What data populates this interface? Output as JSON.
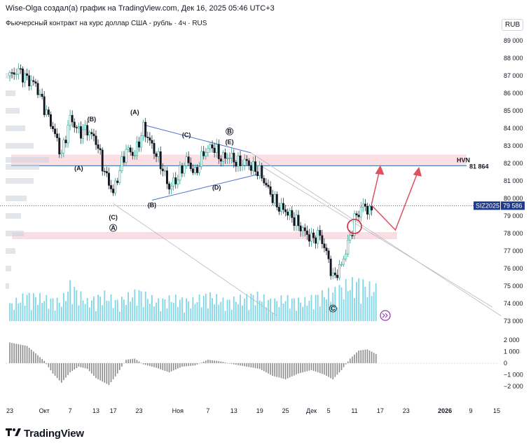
{
  "header": {
    "author_line": "Wise-Olga создал(а) график на TradingView.com, Дек 16, 2025 05:46 UTC+3",
    "instrument": "Фьючерсный контракт на курс доллар США - рубль · 4ч · RUS",
    "currency": "RUB",
    "brand": "TradingView"
  },
  "chart_data": {
    "type": "candlestick",
    "y_axis": {
      "ticks": [
        "89 000",
        "88 000",
        "87 000",
        "86 000",
        "85 000",
        "84 000",
        "83 000",
        "82 000",
        "81 000",
        "80 000",
        "79 000",
        "78 000",
        "77 000",
        "76 000",
        "75 000",
        "74 000",
        "73 000"
      ],
      "range": [
        73000,
        89000
      ]
    },
    "x_axis": {
      "ticks": [
        "23",
        "Окт",
        "7",
        "13",
        "17",
        "23",
        "Ноя",
        "7",
        "13",
        "19",
        "25",
        "Дек",
        "5",
        "11",
        "17",
        "23",
        "2026",
        "9",
        "15"
      ],
      "ticks_day_index": [
        0,
        8,
        14,
        20,
        24,
        30,
        39,
        46,
        52,
        58,
        64,
        70,
        74,
        80,
        86,
        92,
        101,
        107,
        113
      ]
    },
    "price_series": [
      {
        "d": 0,
        "v": 87000
      },
      {
        "d": 2,
        "v": 87300
      },
      {
        "d": 4,
        "v": 86800
      },
      {
        "d": 6,
        "v": 86500
      },
      {
        "d": 8,
        "v": 85200
      },
      {
        "d": 10,
        "v": 84000
      },
      {
        "d": 12,
        "v": 82500
      },
      {
        "d": 14,
        "v": 84600
      },
      {
        "d": 16,
        "v": 83800
      },
      {
        "d": 18,
        "v": 83900
      },
      {
        "d": 20,
        "v": 83300
      },
      {
        "d": 22,
        "v": 81500
      },
      {
        "d": 24,
        "v": 80300
      },
      {
        "d": 25,
        "v": 81200
      },
      {
        "d": 27,
        "v": 82800
      },
      {
        "d": 29,
        "v": 82500
      },
      {
        "d": 31,
        "v": 84000
      },
      {
        "d": 33,
        "v": 83000
      },
      {
        "d": 35,
        "v": 82000
      },
      {
        "d": 37,
        "v": 80600
      },
      {
        "d": 39,
        "v": 81200
      },
      {
        "d": 41,
        "v": 82200
      },
      {
        "d": 43,
        "v": 81400
      },
      {
        "d": 45,
        "v": 82600
      },
      {
        "d": 47,
        "v": 83000
      },
      {
        "d": 49,
        "v": 82300
      },
      {
        "d": 51,
        "v": 82400
      },
      {
        "d": 53,
        "v": 82000
      },
      {
        "d": 55,
        "v": 82100
      },
      {
        "d": 56,
        "v": 81800
      },
      {
        "d": 58,
        "v": 81500
      },
      {
        "d": 60,
        "v": 80500
      },
      {
        "d": 62,
        "v": 79600
      },
      {
        "d": 64,
        "v": 79300
      },
      {
        "d": 66,
        "v": 78800
      },
      {
        "d": 68,
        "v": 78200
      },
      {
        "d": 70,
        "v": 77700
      },
      {
        "d": 72,
        "v": 77900
      },
      {
        "d": 74,
        "v": 76500
      },
      {
        "d": 75,
        "v": 75400
      },
      {
        "d": 77,
        "v": 76200
      },
      {
        "d": 79,
        "v": 77800
      },
      {
        "d": 80,
        "v": 78800
      },
      {
        "d": 82,
        "v": 79600
      },
      {
        "d": 84,
        "v": 79200
      }
    ],
    "volume": [
      {
        "d": 0,
        "v": 0.25
      },
      {
        "d": 4,
        "v": 0.4
      },
      {
        "d": 8,
        "v": 0.35
      },
      {
        "d": 12,
        "v": 0.3
      },
      {
        "d": 14,
        "v": 0.55
      },
      {
        "d": 18,
        "v": 0.3
      },
      {
        "d": 22,
        "v": 0.4
      },
      {
        "d": 25,
        "v": 0.3
      },
      {
        "d": 30,
        "v": 0.45
      },
      {
        "d": 34,
        "v": 0.3
      },
      {
        "d": 38,
        "v": 0.35
      },
      {
        "d": 42,
        "v": 0.3
      },
      {
        "d": 46,
        "v": 0.4
      },
      {
        "d": 50,
        "v": 0.3
      },
      {
        "d": 54,
        "v": 0.35
      },
      {
        "d": 57,
        "v": 0.4
      },
      {
        "d": 61,
        "v": 0.3
      },
      {
        "d": 64,
        "v": 0.35
      },
      {
        "d": 68,
        "v": 0.3
      },
      {
        "d": 72,
        "v": 0.4
      },
      {
        "d": 75,
        "v": 0.45
      },
      {
        "d": 78,
        "v": 0.55
      },
      {
        "d": 81,
        "v": 0.6
      },
      {
        "d": 84,
        "v": 0.5
      }
    ],
    "oscillator": {
      "ticks": [
        "2 000",
        "1 000",
        "0",
        "−1 000",
        "−2 000"
      ],
      "range": [
        -2500,
        2500
      ],
      "values": [
        {
          "d": 0,
          "v": 1800
        },
        {
          "d": 4,
          "v": 1500
        },
        {
          "d": 8,
          "v": 200
        },
        {
          "d": 10,
          "v": -900
        },
        {
          "d": 12,
          "v": -1700
        },
        {
          "d": 14,
          "v": -800
        },
        {
          "d": 16,
          "v": -300
        },
        {
          "d": 18,
          "v": -500
        },
        {
          "d": 20,
          "v": -1300
        },
        {
          "d": 23,
          "v": -1900
        },
        {
          "d": 25,
          "v": -900
        },
        {
          "d": 27,
          "v": 300
        },
        {
          "d": 29,
          "v": 400
        },
        {
          "d": 31,
          "v": -100
        },
        {
          "d": 34,
          "v": -400
        },
        {
          "d": 37,
          "v": -800
        },
        {
          "d": 40,
          "v": -300
        },
        {
          "d": 43,
          "v": -200
        },
        {
          "d": 46,
          "v": 300
        },
        {
          "d": 49,
          "v": 150
        },
        {
          "d": 52,
          "v": -100
        },
        {
          "d": 55,
          "v": -300
        },
        {
          "d": 58,
          "v": -500
        },
        {
          "d": 61,
          "v": -1100
        },
        {
          "d": 64,
          "v": -1400
        },
        {
          "d": 67,
          "v": -900
        },
        {
          "d": 70,
          "v": -600
        },
        {
          "d": 73,
          "v": -1000
        },
        {
          "d": 75,
          "v": -1400
        },
        {
          "d": 77,
          "v": -600
        },
        {
          "d": 79,
          "v": 400
        },
        {
          "d": 81,
          "v": 1100
        },
        {
          "d": 83,
          "v": 1200
        },
        {
          "d": 85,
          "v": 800
        }
      ]
    },
    "levels": {
      "hvn_label": "HVN",
      "hvn_value": "81 864",
      "hvn_price": 81864,
      "last_label": "SIZ2025",
      "last_value": "79 586",
      "last_price": 79586,
      "resistance_zone": [
        81850,
        82500
      ],
      "support_zone": [
        77700,
        78050
      ]
    },
    "wave_labels": [
      {
        "text": "(A)",
        "d": 16,
        "v": 81600
      },
      {
        "text": "(B)",
        "d": 19,
        "v": 84400
      },
      {
        "text": "(C)",
        "d": 24,
        "v": 78800
      },
      {
        "text": "A",
        "d": 24,
        "v": 78200,
        "circled": true
      },
      {
        "text": "(A)",
        "d": 29,
        "v": 84800
      },
      {
        "text": "(B)",
        "d": 33,
        "v": 79500
      },
      {
        "text": "(C)",
        "d": 41,
        "v": 83500
      },
      {
        "text": "(D)",
        "d": 48,
        "v": 80500
      },
      {
        "text": "(E)",
        "d": 51,
        "v": 83100
      },
      {
        "text": "B",
        "d": 51,
        "v": 83700,
        "circled": true
      },
      {
        "text": "C",
        "d": 75,
        "v": 73600,
        "circled": true
      }
    ],
    "colors": {
      "up": "#089981",
      "down": "#131722",
      "volume": "#7fd6e6",
      "zone": "#f8c9d1",
      "hvn_line": "#2a6fb5",
      "arrow": "#e0505e",
      "triangle": "#4a73d6",
      "oscillator": "#8a8a8a",
      "last_badge": "#1e3a8a"
    }
  }
}
